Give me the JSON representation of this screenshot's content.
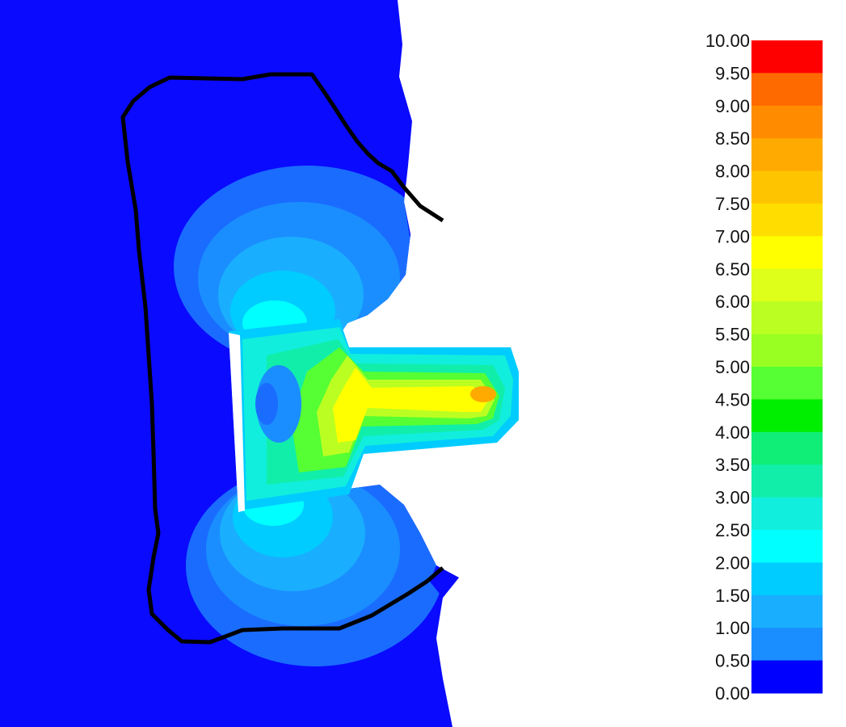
{
  "colorbar": {
    "ticks": [
      "10.00",
      "9.50",
      "9.00",
      "8.50",
      "8.00",
      "7.50",
      "7.00",
      "6.50",
      "6.00",
      "5.50",
      "5.00",
      "4.50",
      "4.00",
      "3.50",
      "3.00",
      "2.50",
      "2.00",
      "1.50",
      "1.00",
      "0.50",
      "0.00"
    ],
    "min": 0,
    "max": 10,
    "step": 0.5,
    "band_colors": [
      "#ff0000",
      "#ff6a00",
      "#ff8c00",
      "#ffaa00",
      "#ffc400",
      "#ffdd00",
      "#ffff00",
      "#ddff1a",
      "#bbff22",
      "#99ff22",
      "#55ff33",
      "#00ee00",
      "#11ee77",
      "#11eeaa",
      "#11eedd",
      "#00ffff",
      "#00ccff",
      "#1aaeff",
      "#1a8eff",
      "#1a6cff",
      "#0000ff"
    ]
  },
  "contour_colors": {
    "background": "#0a0aff",
    "level_05": "#1a6cff",
    "level_10": "#1a8eff",
    "level_15": "#1aaeff",
    "level_20": "#00ccff",
    "level_25": "#00ffff",
    "level_30": "#11eedd",
    "level_35": "#11eeaa",
    "level_45": "#55ff33",
    "level_55": "#bbff22",
    "level_65": "#ffff00",
    "level_80": "#ffaa00",
    "outline": "#000000"
  }
}
